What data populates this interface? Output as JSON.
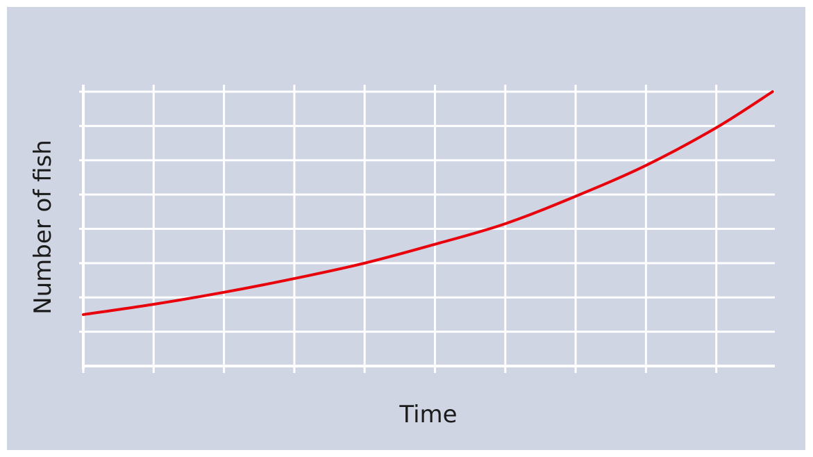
{
  "colors": {
    "background": "#cfd5e3",
    "grid": "#ffffff",
    "curve": "#e8000b",
    "text": "#1b1b1b"
  },
  "chart_data": {
    "type": "line",
    "title": "",
    "xlabel": "Time",
    "ylabel": "Number of fish",
    "xlim": [
      0,
      10
    ],
    "ylim": [
      0,
      8
    ],
    "grid": true,
    "x_ticks": [
      0,
      1,
      2,
      3,
      4,
      5,
      6,
      7,
      8,
      9,
      10
    ],
    "y_ticks": [
      0,
      1,
      2,
      3,
      4,
      5,
      6,
      7,
      8
    ],
    "series": [
      {
        "x": [
          0,
          1,
          2,
          3,
          4,
          5,
          6,
          7,
          8,
          9,
          9.8
        ],
        "y": [
          1.5,
          1.8,
          2.15,
          2.55,
          3.0,
          3.55,
          4.15,
          4.95,
          5.85,
          6.95,
          8.0
        ]
      }
    ]
  }
}
